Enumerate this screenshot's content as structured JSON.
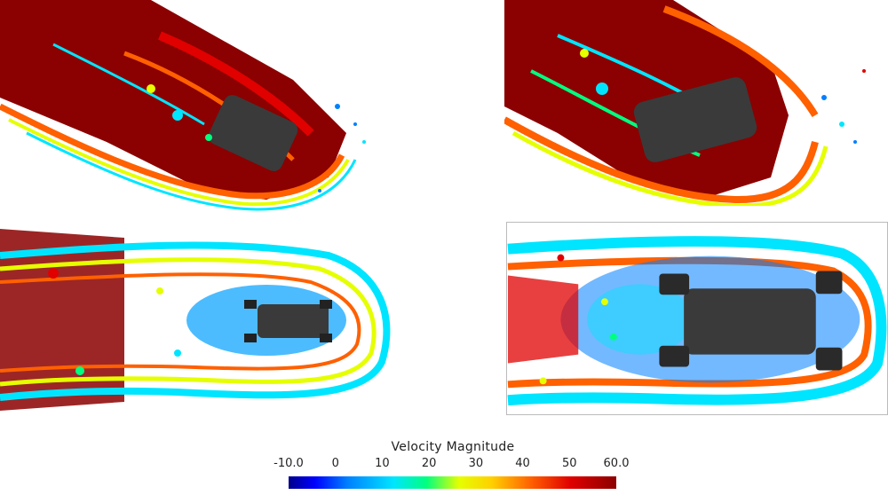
{
  "colorbar": {
    "title": "Velocity Magnitude",
    "ticks": [
      "-10.0",
      "0",
      "10",
      "20",
      "30",
      "40",
      "50",
      "60.0"
    ],
    "range": [
      -10,
      60
    ]
  },
  "palette": {
    "dark_red": "#8b0000",
    "red": "#e00000",
    "orange": "#ff6000",
    "yellow": "#e5ff00",
    "green": "#00ff80",
    "cyan": "#00e5ff",
    "blue": "#0080ff",
    "deep_blue": "#0000ff",
    "body_gray": "#3a3a3a"
  },
  "views": [
    {
      "id": "perspective-side"
    },
    {
      "id": "perspective-close"
    },
    {
      "id": "top-wide"
    },
    {
      "id": "top-close"
    }
  ]
}
